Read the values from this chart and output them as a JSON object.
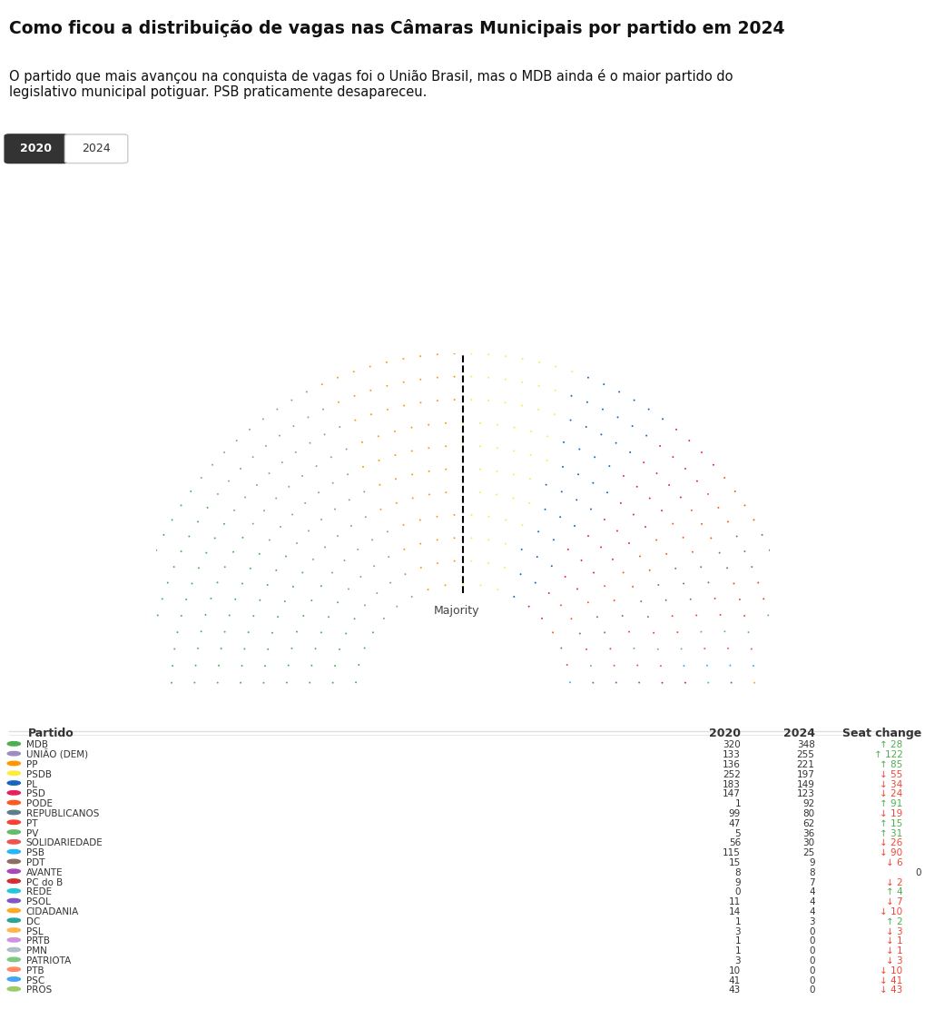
{
  "title": "Como ficou a distribuição de vagas nas Câmaras Municipais por partido em 2024",
  "subtitle": "O partido que mais avançou na conquista de vagas foi o União Brasil, mas o MDB ainda é o maior partido do\nlegislativo municipal potiguar. PSB praticamente desapareceu.",
  "tab_labels": [
    "2020",
    "2024"
  ],
  "parties": [
    {
      "name": "MDB",
      "color": "#4CAF50",
      "seats_2020": 320,
      "seats_2024": 348,
      "change": 28,
      "up": true
    },
    {
      "name": "UNIÃO (DEM)",
      "color": "#9C8FC0",
      "seats_2020": 133,
      "seats_2024": 255,
      "change": 122,
      "up": true
    },
    {
      "name": "PP",
      "color": "#FF9800",
      "seats_2020": 136,
      "seats_2024": 221,
      "change": 85,
      "up": true
    },
    {
      "name": "PSDB",
      "color": "#FFEB3B",
      "seats_2020": 252,
      "seats_2024": 197,
      "change": 55,
      "up": false
    },
    {
      "name": "PL",
      "color": "#1565C0",
      "seats_2020": 183,
      "seats_2024": 149,
      "change": 34,
      "up": false
    },
    {
      "name": "PSD",
      "color": "#E91E63",
      "seats_2020": 147,
      "seats_2024": 123,
      "change": 24,
      "up": false
    },
    {
      "name": "PODE",
      "color": "#FF5722",
      "seats_2020": 1,
      "seats_2024": 92,
      "change": 91,
      "up": true
    },
    {
      "name": "REPUBLICANOS",
      "color": "#607D8B",
      "seats_2020": 99,
      "seats_2024": 80,
      "change": 19,
      "up": false
    },
    {
      "name": "PT",
      "color": "#F44336",
      "seats_2020": 47,
      "seats_2024": 62,
      "change": 15,
      "up": true
    },
    {
      "name": "PV",
      "color": "#66BB6A",
      "seats_2020": 5,
      "seats_2024": 36,
      "change": 31,
      "up": true
    },
    {
      "name": "SOLIDARIEDADE",
      "color": "#EF5350",
      "seats_2020": 56,
      "seats_2024": 30,
      "change": 26,
      "up": false
    },
    {
      "name": "PSB",
      "color": "#29B6F6",
      "seats_2020": 115,
      "seats_2024": 25,
      "change": 90,
      "up": false
    },
    {
      "name": "PDT",
      "color": "#8D6E63",
      "seats_2020": 15,
      "seats_2024": 9,
      "change": 6,
      "up": false
    },
    {
      "name": "AVANTE",
      "color": "#AB47BC",
      "seats_2020": 8,
      "seats_2024": 8,
      "change": 0,
      "up": null
    },
    {
      "name": "PC do B",
      "color": "#D32F2F",
      "seats_2020": 9,
      "seats_2024": 7,
      "change": 2,
      "up": false
    },
    {
      "name": "REDE",
      "color": "#26C6DA",
      "seats_2020": 0,
      "seats_2024": 4,
      "change": 4,
      "up": true
    },
    {
      "name": "PSOL",
      "color": "#7E57C2",
      "seats_2020": 11,
      "seats_2024": 4,
      "change": 7,
      "up": false
    },
    {
      "name": "CIDADANIA",
      "color": "#FFA726",
      "seats_2020": 14,
      "seats_2024": 4,
      "change": 10,
      "up": false
    },
    {
      "name": "DC",
      "color": "#26A69A",
      "seats_2020": 1,
      "seats_2024": 3,
      "change": 2,
      "up": true
    },
    {
      "name": "PSL",
      "color": "#FFB74D",
      "seats_2020": 3,
      "seats_2024": 0,
      "change": 3,
      "up": false
    },
    {
      "name": "PRTB",
      "color": "#CE93D8",
      "seats_2020": 1,
      "seats_2024": 0,
      "change": 1,
      "up": false
    },
    {
      "name": "PMN",
      "color": "#B0BEC5",
      "seats_2020": 1,
      "seats_2024": 0,
      "change": 1,
      "up": false
    },
    {
      "name": "PATRIOTA",
      "color": "#81C784",
      "seats_2020": 3,
      "seats_2024": 0,
      "change": 3,
      "up": false
    },
    {
      "name": "PTB",
      "color": "#FF8A65",
      "seats_2020": 10,
      "seats_2024": 0,
      "change": 10,
      "up": false
    },
    {
      "name": "PSC",
      "color": "#42A5F5",
      "seats_2020": 41,
      "seats_2024": 0,
      "change": 41,
      "up": false
    },
    {
      "name": "PROS",
      "color": "#9CCC65",
      "seats_2020": 43,
      "seats_2024": 0,
      "change": 43,
      "up": false
    }
  ],
  "majority_label": "Majority",
  "bg_color": "#FFFFFF",
  "tab_active_color": "#333333",
  "tab_active_text": "#FFFFFF",
  "tab_inactive_text": "#333333"
}
